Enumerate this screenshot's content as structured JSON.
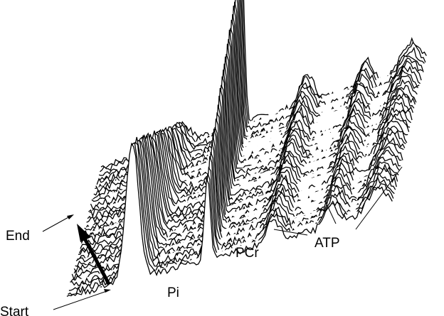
{
  "chart_data": {
    "type": "line",
    "title": "",
    "xlabel": "",
    "ylabel": "",
    "grid": false,
    "legend": "none",
    "line_color": "#000000",
    "background": "#ffffff",
    "peak_labels": {
      "pi": "Pi",
      "pcr": "PCr",
      "atp": "ATP"
    },
    "time_labels": {
      "end": "End",
      "start": "Start"
    }
  }
}
